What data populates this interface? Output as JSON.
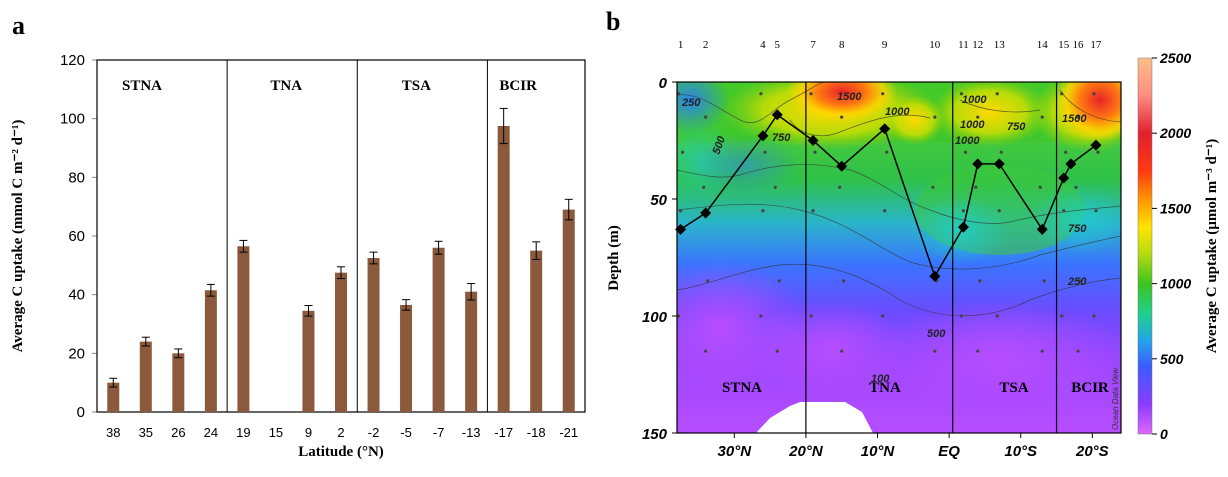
{
  "panel_a": {
    "label": "a",
    "xlabel": "Latitude (°N)",
    "ylabel": "Average C uptake (mmol C m⁻² d⁻¹)",
    "y_ticks": [
      "0",
      "20",
      "40",
      "60",
      "80",
      "100",
      "120"
    ],
    "regions": [
      "STNA",
      "TNA",
      "TSA",
      "BCIR"
    ]
  },
  "panel_b": {
    "label": "b",
    "ylabel": "Depth (m)",
    "colorbar_label": "Average C uptake (µmol m⁻³ d⁻¹)",
    "colorbar_ticks": [
      "0",
      "500",
      "1000",
      "1500",
      "2000",
      "2500"
    ],
    "y_ticks": [
      "0",
      "50",
      "100",
      "150"
    ],
    "x_ticks": [
      "30°N",
      "20°N",
      "10°N",
      "EQ",
      "10°S",
      "20°S"
    ],
    "station_labels": [
      "1",
      "2",
      "4",
      "5",
      "7",
      "8",
      "9",
      "10",
      "11",
      "12",
      "13",
      "14",
      "15",
      "16",
      "17"
    ],
    "regions": [
      "STNA",
      "TNA",
      "TSA",
      "BCIR"
    ],
    "contour_labels": [
      "250",
      "500",
      "750",
      "1000",
      "1500",
      "1000",
      "1000",
      "750",
      "1500",
      "1000",
      "750",
      "500",
      "250",
      "100",
      "750"
    ],
    "watermark": "Ocean Data View"
  },
  "chart_data": [
    {
      "type": "bar",
      "categories": [
        "38",
        "35",
        "26",
        "24",
        "19",
        "15",
        "9",
        "2",
        "-2",
        "-5",
        "-7",
        "-13",
        "-17",
        "-18",
        "-21"
      ],
      "values": [
        10,
        24,
        20,
        41.5,
        56.5,
        null,
        34.5,
        47.5,
        52.5,
        36.5,
        56,
        41,
        97.5,
        55,
        69
      ],
      "errors": [
        1.5,
        1.5,
        1.5,
        2,
        2,
        null,
        1.8,
        2,
        2,
        1.8,
        2.2,
        2.8,
        6,
        3,
        3.5
      ],
      "ylim": [
        0,
        120
      ],
      "xlabel": "Latitude (°N)",
      "ylabel": "Average C uptake (mmol C m⁻² d⁻¹)",
      "region_groups": [
        {
          "name": "STNA",
          "from": "38",
          "to": "24"
        },
        {
          "name": "TNA",
          "from": "19",
          "to": "2"
        },
        {
          "name": "TSA",
          "from": "-2",
          "to": "-13"
        },
        {
          "name": "BCIR",
          "from": "-17",
          "to": "-21"
        }
      ],
      "colors": {
        "bar": "#8b5a3c"
      }
    },
    {
      "type": "heatmap",
      "x_axis": "latitude (°N)",
      "xlim": [
        38,
        -24
      ],
      "ylim": [
        150,
        0
      ],
      "ylabel": "Depth (m)",
      "colorbar_range": [
        0,
        2500
      ],
      "colorbar_label": "Average C uptake (µmol m⁻³ d⁻¹)",
      "line_series": {
        "lat": [
          37.5,
          34,
          26,
          24,
          19,
          15,
          9,
          2,
          -2,
          -4,
          -7,
          -13,
          -16,
          -17,
          -20.5
        ],
        "depth": [
          63,
          56,
          23,
          14,
          25,
          36,
          20,
          83,
          62,
          35,
          35,
          63,
          41,
          35,
          27
        ]
      },
      "region_dividers_lat": [
        20,
        -0.5,
        -15
      ],
      "colors": {
        "low": "#b347ff",
        "mid_low": "#3a9cff",
        "mid": "#2fc84a",
        "mid_high": "#ffd400",
        "high": "#e8232a",
        "max": "#ffb27a"
      }
    }
  ]
}
